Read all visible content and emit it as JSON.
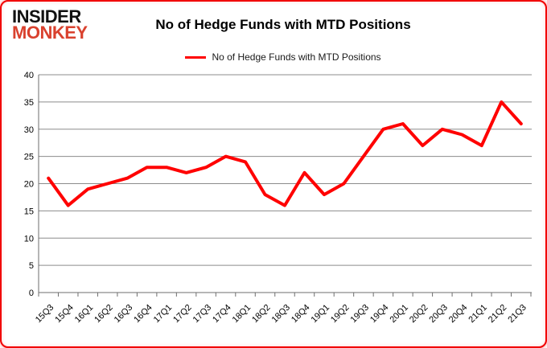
{
  "brand": {
    "line1": "INSIDER",
    "line2": "MONKEY",
    "accent_color": "#d9412e"
  },
  "header": {
    "title": "No of Hedge Funds with MTD Positions"
  },
  "legend": {
    "label": "No of Hedge Funds with MTD Positions",
    "line_color": "#ff0000"
  },
  "chart_data": {
    "type": "line",
    "title": "No of Hedge Funds with MTD Positions",
    "categories": [
      "15Q3",
      "15Q4",
      "16Q1",
      "16Q2",
      "16Q3",
      "16Q4",
      "17Q1",
      "17Q2",
      "17Q3",
      "17Q4",
      "18Q1",
      "18Q2",
      "18Q3",
      "18Q4",
      "19Q1",
      "19Q2",
      "19Q3",
      "19Q4",
      "20Q1",
      "20Q2",
      "20Q3",
      "20Q4",
      "21Q1",
      "21Q2",
      "21Q3"
    ],
    "values": [
      21,
      16,
      19,
      20,
      21,
      23,
      23,
      22,
      23,
      25,
      24,
      18,
      16,
      22,
      18,
      20,
      25,
      30,
      31,
      27,
      30,
      29,
      27,
      35,
      31
    ],
    "series_name": "No of Hedge Funds with MTD Positions",
    "series_color": "#ff0000",
    "xlabel": "",
    "ylabel": "",
    "ylim": [
      0,
      40
    ],
    "ytick_step": 5,
    "grid": true,
    "legend_position": "top-center"
  },
  "colors": {
    "grid": "#8c8c8c",
    "axis": "#6e6e6e",
    "tick_text": "#000000",
    "border": "#f10000"
  }
}
